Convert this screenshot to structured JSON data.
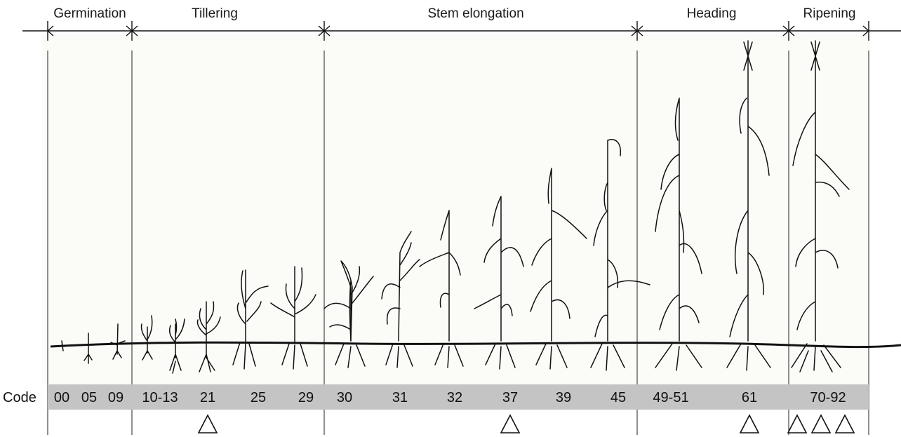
{
  "stages": [
    {
      "label": "Germination"
    },
    {
      "label": "Tillering"
    },
    {
      "label": "Stem elongation"
    },
    {
      "label": "Heading"
    },
    {
      "label": "Ripening"
    }
  ],
  "code_row": {
    "label": "Code",
    "codes": [
      "00",
      "05",
      "09",
      "10-13",
      "21",
      "25",
      "29",
      "30",
      "31",
      "32",
      "37",
      "39",
      "45",
      "49-51",
      "61",
      "70-92"
    ]
  },
  "markers": {
    "symbol": "△",
    "marked_codes": [
      "21",
      "37",
      "61",
      "70-92"
    ],
    "ripening_count": 3
  },
  "colors": {
    "code_band": "#c4c4c4",
    "background": "#fbfbf8",
    "line": "#111111"
  }
}
